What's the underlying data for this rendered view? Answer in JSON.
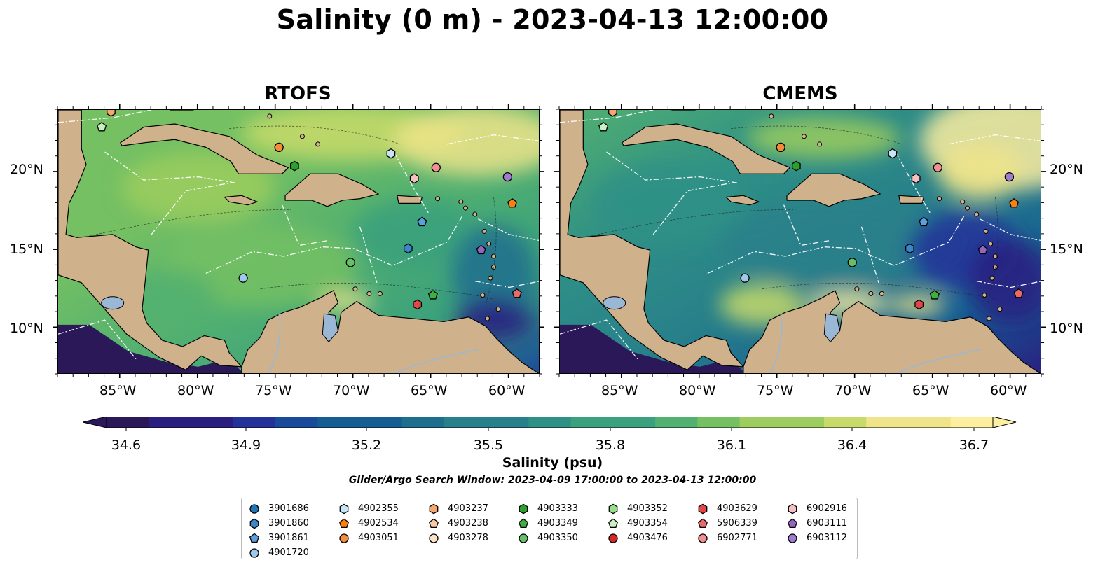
{
  "title": "Salinity (0 m) - 2023-04-13 12:00:00",
  "panels": [
    {
      "name": "RTOFS",
      "variant": "rtofs"
    },
    {
      "name": "CMEMS",
      "variant": "cmems"
    }
  ],
  "axes": {
    "lon_ticks": [
      "85°W",
      "80°W",
      "75°W",
      "70°W",
      "65°W",
      "60°W"
    ],
    "lat_ticks": [
      "20°N",
      "15°N",
      "10°N"
    ]
  },
  "colorbar": {
    "label": "Salinity (psu)",
    "ticks": [
      "34.6",
      "34.9",
      "35.2",
      "35.5",
      "35.8",
      "36.1",
      "36.4",
      "36.7"
    ],
    "range": [
      34.6,
      36.7
    ],
    "colormap": "haline",
    "colors": [
      "#2a1858",
      "#2a1f80",
      "#23319a",
      "#1a4a9a",
      "#155d93",
      "#1e6e8e",
      "#28808a",
      "#2f9086",
      "#3aa07d",
      "#52b070",
      "#74c063",
      "#9ccd5e",
      "#c8da6a",
      "#efe48a",
      "#fdeea0"
    ]
  },
  "search_window": "Glider/Argo Search Window: 2023-04-09 17:00:00 to 2023-04-13 12:00:00",
  "legend": [
    {
      "id": "3901686",
      "shape": "circle",
      "color": "#1f77b4"
    },
    {
      "id": "3901860",
      "shape": "hexagon",
      "color": "#3a86c8"
    },
    {
      "id": "3901861",
      "shape": "pentagon",
      "color": "#5aa0dc"
    },
    {
      "id": "4901720",
      "shape": "circle",
      "color": "#9ec8ec"
    },
    {
      "id": "4902355",
      "shape": "hexagon",
      "color": "#c8e4f8"
    },
    {
      "id": "4902534",
      "shape": "pentagon",
      "color": "#ff7f0e"
    },
    {
      "id": "4903051",
      "shape": "circle",
      "color": "#f58c3a"
    },
    {
      "id": "4903237",
      "shape": "hexagon",
      "color": "#f6a86c"
    },
    {
      "id": "4903238",
      "shape": "pentagon",
      "color": "#fbc9a0"
    },
    {
      "id": "4903278",
      "shape": "circle",
      "color": "#fde0c8"
    },
    {
      "id": "4903333",
      "shape": "hexagon",
      "color": "#2ca02c"
    },
    {
      "id": "4903349",
      "shape": "pentagon",
      "color": "#3fb040"
    },
    {
      "id": "4903350",
      "shape": "circle",
      "color": "#66c06a"
    },
    {
      "id": "4903352",
      "shape": "hexagon",
      "color": "#98df8a"
    },
    {
      "id": "4903354",
      "shape": "pentagon",
      "color": "#c9f0c0"
    },
    {
      "id": "4903476",
      "shape": "circle",
      "color": "#d62728"
    },
    {
      "id": "4903629",
      "shape": "hexagon",
      "color": "#e04848"
    },
    {
      "id": "5906339",
      "shape": "pentagon",
      "color": "#ea6a6a"
    },
    {
      "id": "6902771",
      "shape": "circle",
      "color": "#f09090"
    },
    {
      "id": "6902916",
      "shape": "hexagon",
      "color": "#f7c0c0"
    },
    {
      "id": "6903111",
      "shape": "pentagon",
      "color": "#9467bd"
    },
    {
      "id": "6903112",
      "shape": "circle",
      "color": "#a07cd0"
    }
  ],
  "map_extent": {
    "lon": [
      -89,
      -58
    ],
    "lat": [
      7,
      24
    ]
  },
  "floats": [
    {
      "id": "4903354",
      "lon": -86.2,
      "lat": 22.9
    },
    {
      "id": "4903237",
      "lon": -85.6,
      "lat": 23.9
    },
    {
      "id": "4903051",
      "lon": -74.8,
      "lat": 21.6
    },
    {
      "id": "4903333",
      "lon": -73.8,
      "lat": 20.4
    },
    {
      "id": "4902355",
      "lon": -67.6,
      "lat": 21.2
    },
    {
      "id": "6902916",
      "lon": -66.1,
      "lat": 19.6
    },
    {
      "id": "6902771",
      "lon": -64.7,
      "lat": 20.3
    },
    {
      "id": "6903112",
      "lon": -60.1,
      "lat": 19.7
    },
    {
      "id": "4902534",
      "lon": -59.8,
      "lat": 18.0
    },
    {
      "id": "3901861",
      "lon": -65.6,
      "lat": 16.8
    },
    {
      "id": "3901860",
      "lon": -66.5,
      "lat": 15.1
    },
    {
      "id": "6903111",
      "lon": -61.8,
      "lat": 15.0
    },
    {
      "id": "4903350",
      "lon": -70.2,
      "lat": 14.2
    },
    {
      "id": "4901720",
      "lon": -77.1,
      "lat": 13.2
    },
    {
      "id": "4903349",
      "lon": -64.9,
      "lat": 12.1
    },
    {
      "id": "5906339",
      "lon": -59.5,
      "lat": 12.2
    },
    {
      "id": "4903629",
      "lon": -65.9,
      "lat": 11.5
    }
  ]
}
